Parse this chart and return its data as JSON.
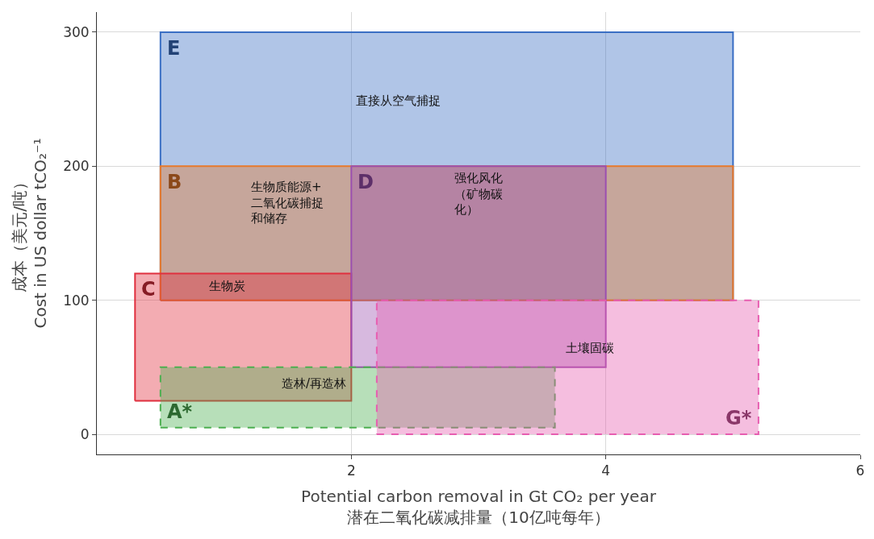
{
  "chart_data": {
    "type": "area",
    "xlabel": "Potential carbon removal in Gt CO₂ per year\n潜在二氧化碳减排量（10亿吨每年）",
    "ylabel": "成本（美元/吨）\nCost in US dollar tCO₂⁻¹",
    "xlim": [
      0,
      6
    ],
    "ylim": [
      -15,
      315
    ],
    "xticks": [
      2,
      4,
      6
    ],
    "yticks": [
      0,
      100,
      200,
      300
    ],
    "grid": true,
    "legend": false,
    "series": [
      {
        "name": "E",
        "color": "#3a6fc4",
        "x": [
          0.5,
          5,
          5,
          0.5,
          0.5
        ],
        "values": [
          100,
          100,
          300,
          300,
          100
        ]
      },
      {
        "name": "B",
        "color": "#e8792b",
        "x": [
          0.5,
          5,
          5,
          0.5,
          0.5
        ],
        "values": [
          100,
          100,
          200,
          200,
          100
        ]
      },
      {
        "name": "C",
        "color": "#e0303f",
        "x": [
          0.3,
          2,
          2,
          0.3,
          0.3
        ],
        "values": [
          25,
          25,
          120,
          120,
          25
        ]
      },
      {
        "name": "D",
        "color": "#9b4fb0",
        "x": [
          2,
          4,
          4,
          2,
          2
        ],
        "values": [
          50,
          50,
          200,
          200,
          50
        ]
      },
      {
        "name": "A*",
        "color": "#4caf50",
        "line_style": "dashed",
        "x": [
          0.5,
          3.6,
          3.6,
          0.5,
          0.5
        ],
        "values": [
          5,
          5,
          50,
          50,
          5
        ]
      },
      {
        "name": "G*",
        "color": "#e75db0",
        "line_style": "dashed",
        "x": [
          2.2,
          5.2,
          5.2,
          2.2,
          2.2
        ],
        "values": [
          0,
          0,
          100,
          100,
          0
        ]
      }
    ],
    "annotations": [
      "直接从空气捕捉",
      "生物质能源+二氧化碳捕捉和储存",
      "强化风化（矿物碳化）",
      "生物炭",
      "造林/再造林",
      "土壤固碳"
    ]
  }
}
